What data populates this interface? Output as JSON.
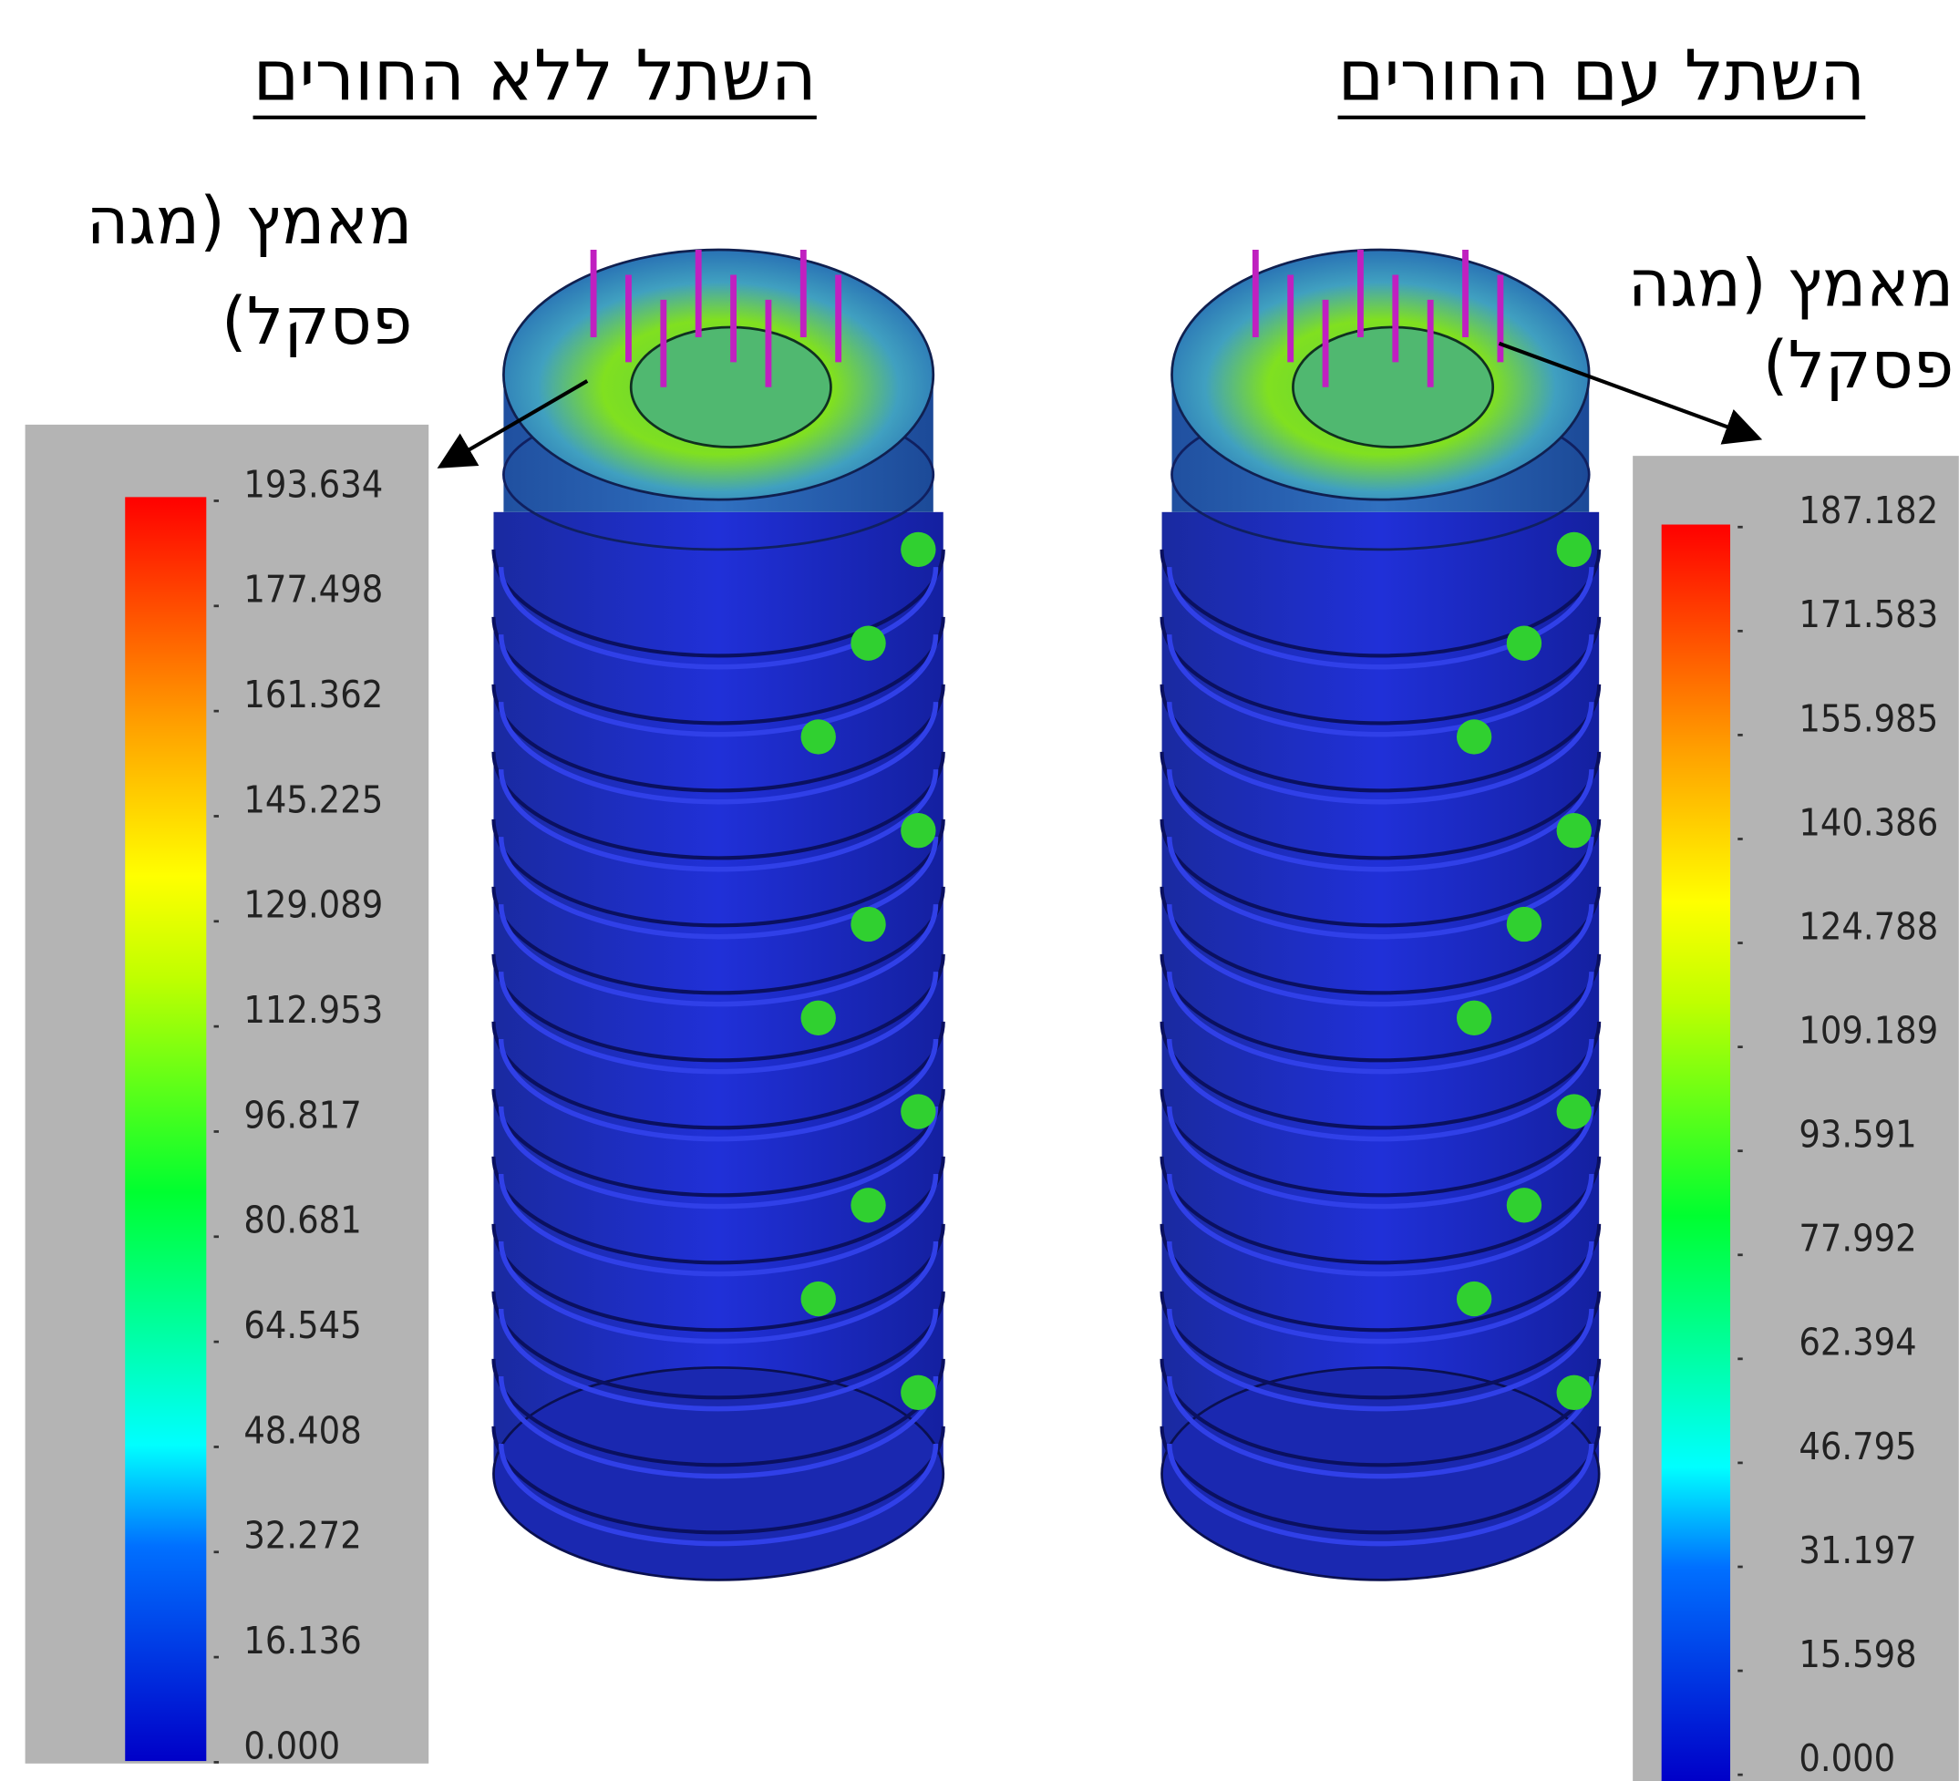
{
  "panels": [
    {
      "title": "השתל ללא החורים",
      "label_line1": "מאמץ (מגה",
      "label_line2": "פסקל)",
      "legend_ticks": [
        "193.634",
        "177.498",
        "161.362",
        "145.225",
        "129.089",
        "112.953",
        "96.817",
        "80.681",
        "64.545",
        "48.408",
        "32.272",
        "16.136",
        "0.000"
      ]
    },
    {
      "title": "השתל עם החורים",
      "label_line1": "מאמץ (מגה",
      "label_line2": "פסקל)",
      "legend_ticks": [
        "187.182",
        "171.583",
        "155.985",
        "140.386",
        "124.788",
        "109.189",
        "93.591",
        "77.992",
        "62.394",
        "46.795",
        "31.197",
        "15.598",
        "0.000"
      ]
    }
  ]
}
